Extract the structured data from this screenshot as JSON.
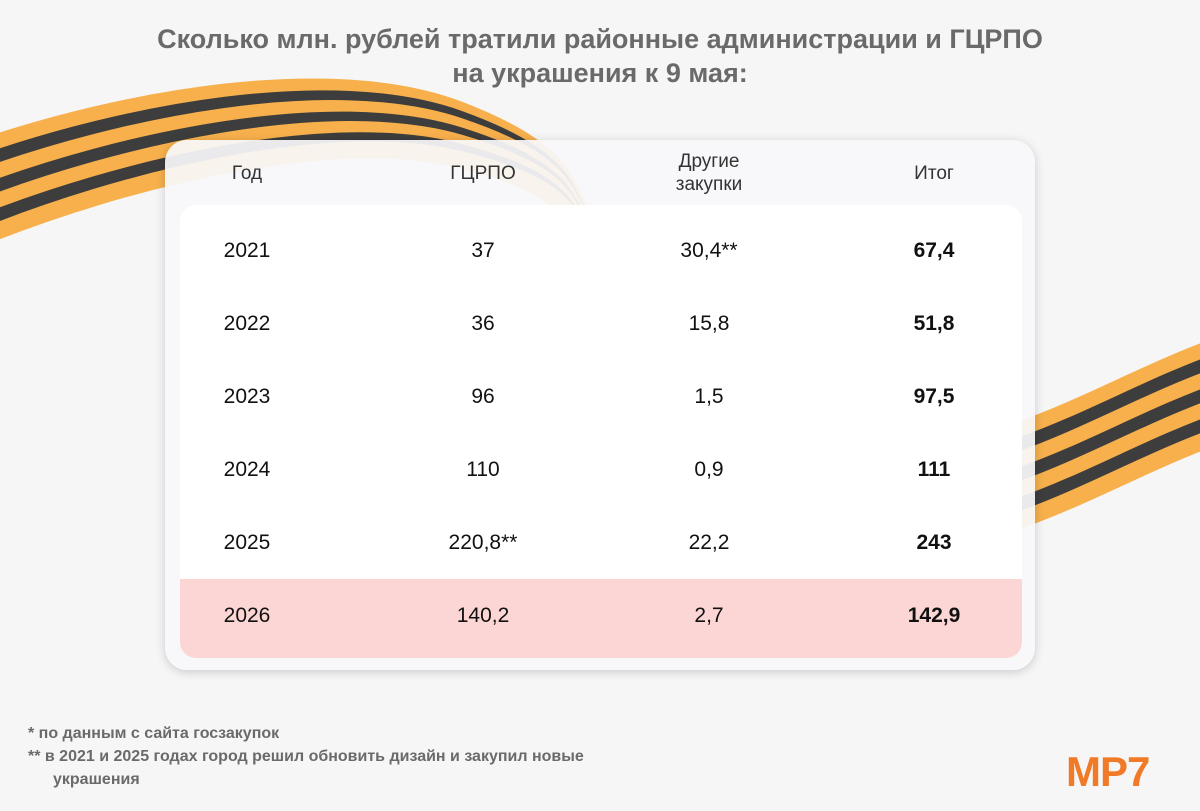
{
  "title": {
    "line1": "Сколько млн. рублей тратили районные администрации и ГЦРПО",
    "line2": "на украшения к 9 мая:"
  },
  "colors": {
    "ribbon_orange": "#f7b04c",
    "ribbon_dark": "#3d3d3d",
    "highlight_row": "#fbd6d4",
    "brand": "#f07a28"
  },
  "chart_data": {
    "type": "table",
    "columns": [
      "Год",
      "ГЦРПО",
      "Другие закупки",
      "Итог"
    ],
    "rows": [
      [
        "2021",
        "37",
        "30,4**",
        "67,4"
      ],
      [
        "2022",
        "36",
        "15,8",
        "51,8"
      ],
      [
        "2023",
        "96",
        "1,5",
        "97,5"
      ],
      [
        "2024",
        "110",
        "0,9",
        "111"
      ],
      [
        "2025",
        "220,8**",
        "22,2",
        "243"
      ],
      [
        "2026",
        "140,2",
        "2,7",
        "142,9"
      ]
    ],
    "highlighted_row": "2026"
  },
  "footnotes": {
    "note1": "*  по данным с сайта госзакупок",
    "note2": "**  в 2021 и 2025 годах город решил обновить дизайн и закупил новые украшения"
  },
  "logo": "МР7"
}
